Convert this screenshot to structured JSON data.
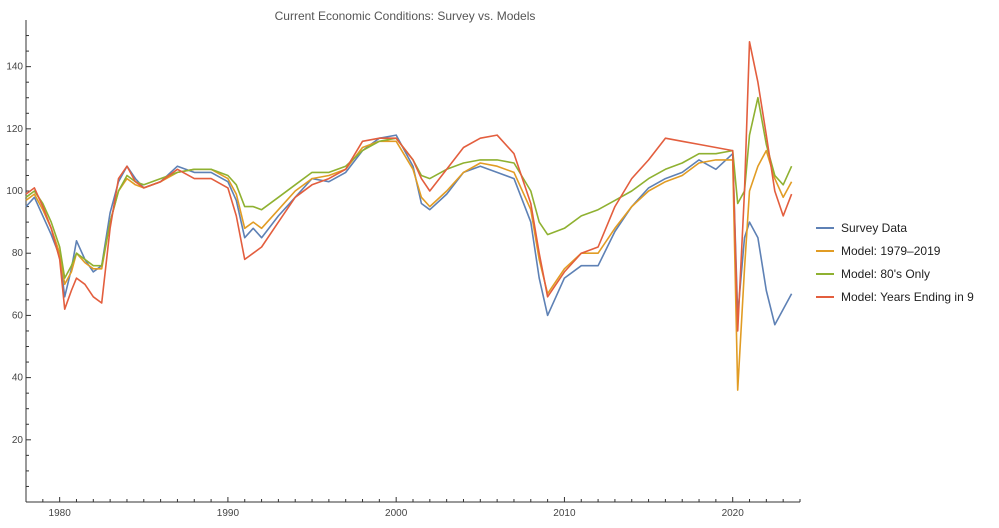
{
  "chart_data": {
    "type": "line",
    "title": "Current Economic Conditions: Survey vs. Models",
    "xlabel": "",
    "ylabel": "",
    "xlim": [
      1978,
      2024
    ],
    "ylim": [
      0,
      155
    ],
    "x_ticks": [
      1980,
      1990,
      2000,
      2010,
      2020
    ],
    "y_ticks": [
      20,
      40,
      60,
      80,
      100,
      120,
      140
    ],
    "grid": false,
    "legend_position": "right",
    "series": [
      {
        "name": "Survey Data",
        "color": "#5E81B5",
        "x": [
          1978.0,
          1978.5,
          1979.0,
          1979.5,
          1980.0,
          1980.3,
          1980.7,
          1981.0,
          1981.5,
          1982.0,
          1982.5,
          1983.0,
          1983.5,
          1984.0,
          1984.5,
          1985.0,
          1986.0,
          1987.0,
          1988.0,
          1989.0,
          1990.0,
          1990.5,
          1991.0,
          1991.5,
          1992.0,
          1993.0,
          1994.0,
          1995.0,
          1996.0,
          1997.0,
          1998.0,
          1999.0,
          2000.0,
          2001.0,
          2001.5,
          2002.0,
          2003.0,
          2004.0,
          2005.0,
          2006.0,
          2007.0,
          2008.0,
          2008.5,
          2009.0,
          2010.0,
          2011.0,
          2012.0,
          2013.0,
          2014.0,
          2015.0,
          2016.0,
          2017.0,
          2018.0,
          2019.0,
          2020.0,
          2020.3,
          2020.7,
          2021.0,
          2021.5,
          2022.0,
          2022.5,
          2023.0,
          2023.5
        ],
        "values": [
          95,
          98,
          92,
          86,
          79,
          66,
          75,
          84,
          78,
          74,
          76,
          93,
          103,
          108,
          104,
          101,
          103,
          108,
          106,
          106,
          103,
          97,
          85,
          88,
          85,
          92,
          98,
          104,
          103,
          106,
          113,
          117,
          118,
          108,
          96,
          94,
          99,
          106,
          108,
          106,
          104,
          90,
          72,
          60,
          72,
          76,
          76,
          87,
          95,
          101,
          104,
          106,
          110,
          107,
          112,
          60,
          85,
          90,
          85,
          68,
          57,
          62,
          67
        ]
      },
      {
        "name": "Model: 1979–2019",
        "color": "#E19C24",
        "x": [
          1978.0,
          1978.5,
          1979.0,
          1979.5,
          1980.0,
          1980.3,
          1980.7,
          1981.0,
          1981.5,
          1982.0,
          1982.5,
          1983.0,
          1983.5,
          1984.0,
          1984.5,
          1985.0,
          1986.0,
          1987.0,
          1988.0,
          1989.0,
          1990.0,
          1990.5,
          1991.0,
          1991.5,
          1992.0,
          1993.0,
          1994.0,
          1995.0,
          1996.0,
          1997.0,
          1998.0,
          1999.0,
          2000.0,
          2001.0,
          2001.5,
          2002.0,
          2003.0,
          2004.0,
          2005.0,
          2006.0,
          2007.0,
          2008.0,
          2008.5,
          2009.0,
          2010.0,
          2011.0,
          2012.0,
          2013.0,
          2014.0,
          2015.0,
          2016.0,
          2017.0,
          2018.0,
          2019.0,
          2020.0,
          2020.3,
          2020.7,
          2021.0,
          2021.5,
          2022.0,
          2022.5,
          2023.0,
          2023.5
        ],
        "values": [
          97,
          99,
          94,
          88,
          80,
          70,
          74,
          80,
          77,
          75,
          75,
          90,
          100,
          104,
          102,
          101,
          103,
          106,
          107,
          107,
          104,
          99,
          88,
          90,
          88,
          94,
          100,
          104,
          105,
          107,
          114,
          116,
          116,
          107,
          98,
          95,
          100,
          106,
          109,
          108,
          106,
          94,
          78,
          67,
          75,
          80,
          80,
          88,
          95,
          100,
          103,
          105,
          109,
          110,
          110,
          36,
          75,
          100,
          108,
          113,
          104,
          98,
          103
        ]
      },
      {
        "name": "Model: 80's Only",
        "color": "#8FB131",
        "x": [
          1978.0,
          1978.5,
          1979.0,
          1979.5,
          1980.0,
          1980.3,
          1980.7,
          1981.0,
          1981.5,
          1982.0,
          1982.5,
          1983.0,
          1983.5,
          1984.0,
          1984.5,
          1985.0,
          1986.0,
          1987.0,
          1988.0,
          1989.0,
          1990.0,
          1990.5,
          1991.0,
          1991.5,
          1992.0,
          1993.0,
          1994.0,
          1995.0,
          1996.0,
          1997.0,
          1998.0,
          1999.0,
          2000.0,
          2001.0,
          2001.5,
          2002.0,
          2003.0,
          2004.0,
          2005.0,
          2006.0,
          2007.0,
          2008.0,
          2008.5,
          2009.0,
          2010.0,
          2011.0,
          2012.0,
          2013.0,
          2014.0,
          2015.0,
          2016.0,
          2017.0,
          2018.0,
          2019.0,
          2020.0,
          2020.3,
          2020.7,
          2021.0,
          2021.5,
          2022.0,
          2022.5,
          2023.0,
          2023.5
        ],
        "values": [
          98,
          100,
          96,
          90,
          82,
          72,
          76,
          80,
          78,
          76,
          76,
          90,
          100,
          105,
          103,
          102,
          104,
          106,
          107,
          107,
          105,
          102,
          95,
          95,
          94,
          98,
          102,
          106,
          106,
          108,
          113,
          116,
          117,
          110,
          105,
          104,
          107,
          109,
          110,
          110,
          109,
          100,
          90,
          86,
          88,
          92,
          94,
          97,
          100,
          104,
          107,
          109,
          112,
          112,
          113,
          96,
          100,
          118,
          130,
          115,
          105,
          102,
          108
        ]
      },
      {
        "name": "Model: Years Ending in 9",
        "color": "#E35E3E",
        "x": [
          1978.0,
          1978.5,
          1979.0,
          1979.5,
          1980.0,
          1980.3,
          1980.7,
          1981.0,
          1981.5,
          1982.0,
          1982.5,
          1983.0,
          1983.5,
          1984.0,
          1984.5,
          1985.0,
          1986.0,
          1987.0,
          1988.0,
          1989.0,
          1990.0,
          1990.5,
          1991.0,
          1991.5,
          1992.0,
          1993.0,
          1994.0,
          1995.0,
          1996.0,
          1997.0,
          1998.0,
          1999.0,
          2000.0,
          2001.0,
          2001.5,
          2002.0,
          2003.0,
          2004.0,
          2005.0,
          2006.0,
          2007.0,
          2008.0,
          2008.5,
          2009.0,
          2010.0,
          2011.0,
          2012.0,
          2013.0,
          2014.0,
          2015.0,
          2016.0,
          2017.0,
          2018.0,
          2019.0,
          2020.0,
          2020.3,
          2020.7,
          2021.0,
          2021.5,
          2022.0,
          2022.5,
          2023.0,
          2023.5
        ],
        "values": [
          99,
          101,
          95,
          88,
          78,
          62,
          68,
          72,
          70,
          66,
          64,
          88,
          104,
          108,
          103,
          101,
          103,
          107,
          104,
          104,
          101,
          92,
          78,
          80,
          82,
          90,
          98,
          102,
          104,
          107,
          116,
          117,
          117,
          110,
          104,
          100,
          107,
          114,
          117,
          118,
          112,
          96,
          80,
          66,
          74,
          80,
          82,
          95,
          104,
          110,
          117,
          116,
          115,
          114,
          113,
          55,
          100,
          148,
          135,
          118,
          100,
          92,
          99
        ]
      }
    ]
  }
}
